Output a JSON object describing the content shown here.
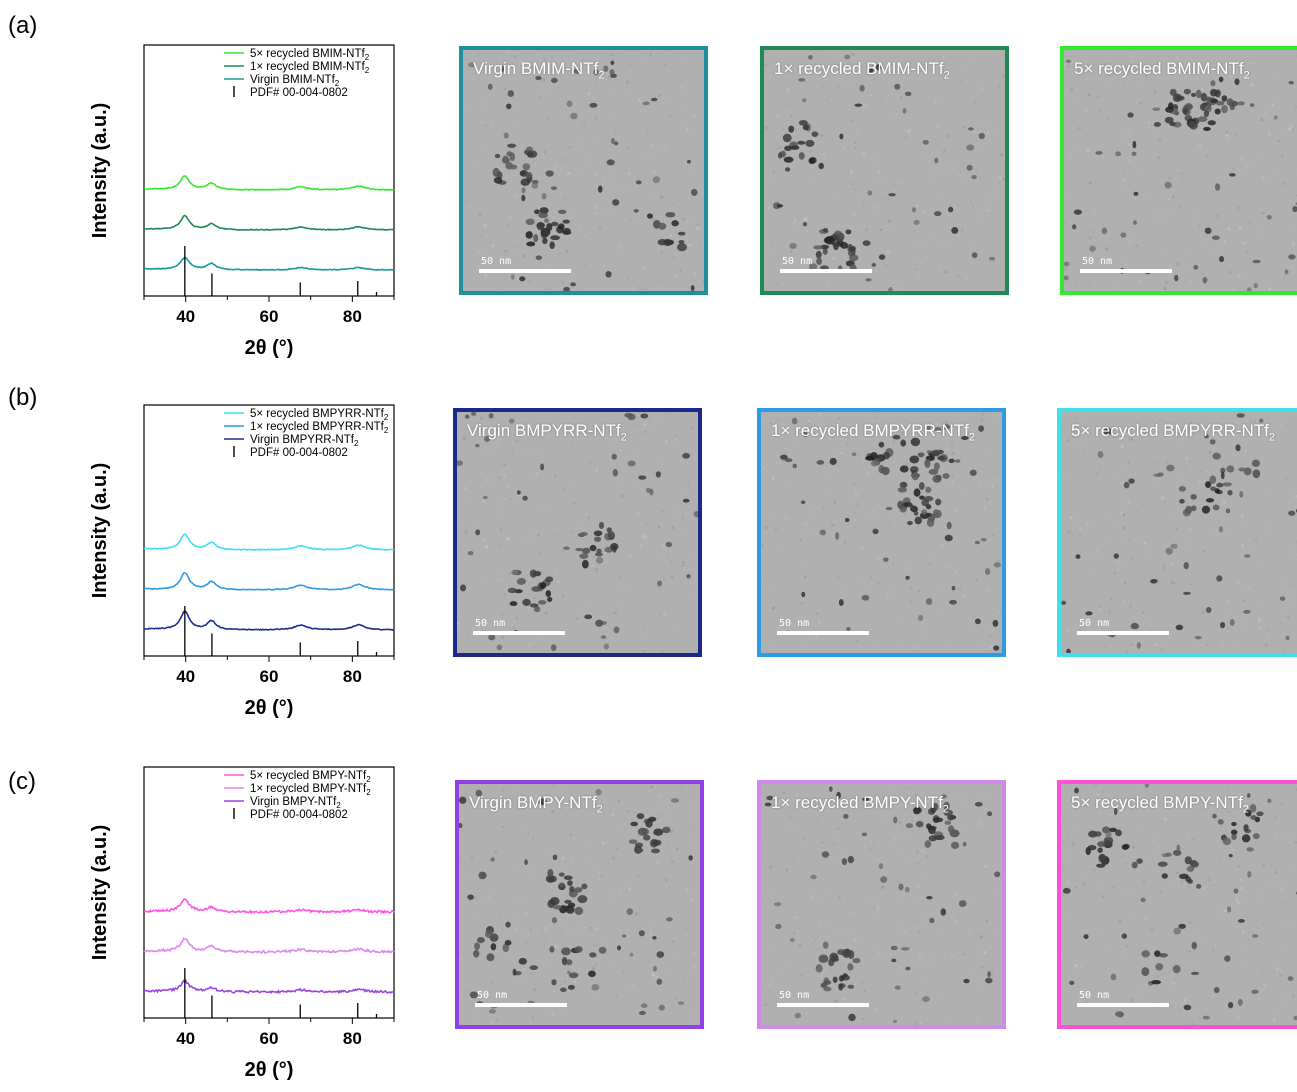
{
  "panels": [
    {
      "label": "(a)",
      "legend": [
        {
          "text": "5× recycled BMIM-NTf",
          "sub": "2",
          "color": "#33e833"
        },
        {
          "text": "1× recycled BMIM-NTf",
          "sub": "2",
          "color": "#1f8a55"
        },
        {
          "text": "Virgin BMIM-NTf",
          "sub": "2",
          "color": "#1a9a9a"
        },
        {
          "text": "PDF# 00-004-0802",
          "sub": "",
          "color": "#000000"
        }
      ],
      "tem": [
        {
          "title": "Virgin BMIM-NTf",
          "sub": "2",
          "border": "#1f8f9a",
          "scale": "50 nm"
        },
        {
          "title": "1× recycled BMIM-NTf",
          "sub": "2",
          "border": "#1e8a56",
          "scale": "50 nm"
        },
        {
          "title": "5× recycled BMIM-NTf",
          "sub": "2",
          "border": "#33e833",
          "scale": "50 nm"
        }
      ]
    },
    {
      "label": "(b)",
      "legend": [
        {
          "text": "5× recycled BMPYRR-NTf",
          "sub": "2",
          "color": "#3fe0ec"
        },
        {
          "text": "1× recycled BMPYRR-NTf",
          "sub": "2",
          "color": "#2d9be0"
        },
        {
          "text": "Virgin BMPYRR-NTf",
          "sub": "2",
          "color": "#1d2f8c"
        },
        {
          "text": "PDF# 00-004-0802",
          "sub": "",
          "color": "#000000"
        }
      ],
      "tem": [
        {
          "title": "Virgin BMPYRR-NTf",
          "sub": "2",
          "border": "#1b2a8a",
          "scale": "50 nm"
        },
        {
          "title": "1× recycled BMPYRR-NTf",
          "sub": "2",
          "border": "#2d9be6",
          "scale": "50 nm"
        },
        {
          "title": "5× recycled BMPYRR-NTf",
          "sub": "2",
          "border": "#3fe0ec",
          "scale": "50 nm"
        }
      ]
    },
    {
      "label": "(c)",
      "legend": [
        {
          "text": "5× recycled BMPY-NTf",
          "sub": "2",
          "color": "#ff55e0"
        },
        {
          "text": "1× recycled BMPY-NTf",
          "sub": "2",
          "color": "#dd88ee"
        },
        {
          "text": "Virgin BMPY-NTf",
          "sub": "2",
          "color": "#9b45e0"
        },
        {
          "text": "PDF# 00-004-0802",
          "sub": "",
          "color": "#000000"
        }
      ],
      "tem": [
        {
          "title": "Virgin BMPY-NTf",
          "sub": "2",
          "border": "#9140e8",
          "scale": "50 nm"
        },
        {
          "title": "1× recycled BMPY-NTf",
          "sub": "2",
          "border": "#d08ae8",
          "scale": "50 nm"
        },
        {
          "title": "5× recycled BMPY-NTf",
          "sub": "2",
          "border": "#ff4fd6",
          "scale": "50 nm"
        }
      ]
    }
  ],
  "chart_data": [
    {
      "type": "line",
      "ylabel": "Intensity (a.u.)",
      "xlabel": "2θ (°)",
      "xlim": [
        30,
        90
      ],
      "xticks": [
        40,
        60,
        80
      ],
      "yticks": "none",
      "series": [
        {
          "name": "5× recycled BMIM-NTf2",
          "peaks": [
            {
              "x": 39.8,
              "h": 0.34
            },
            {
              "x": 46.2,
              "h": 0.17
            },
            {
              "x": 67.6,
              "h": 0.08
            },
            {
              "x": 81.5,
              "h": 0.1
            }
          ]
        },
        {
          "name": "1× recycled BMIM-NTf2",
          "peaks": [
            {
              "x": 39.8,
              "h": 0.34
            },
            {
              "x": 46.2,
              "h": 0.15
            },
            {
              "x": 67.6,
              "h": 0.07
            },
            {
              "x": 81.5,
              "h": 0.08
            }
          ]
        },
        {
          "name": "Virgin BMIM-NTf2",
          "peaks": [
            {
              "x": 39.8,
              "h": 0.3
            },
            {
              "x": 46.2,
              "h": 0.16
            },
            {
              "x": 67.6,
              "h": 0.06
            },
            {
              "x": 81.5,
              "h": 0.06
            }
          ]
        }
      ],
      "reference": {
        "name": "PDF# 00-004-0802",
        "sticks": [
          {
            "x": 39.8,
            "h": 1.0
          },
          {
            "x": 46.3,
            "h": 0.45
          },
          {
            "x": 67.5,
            "h": 0.27
          },
          {
            "x": 81.3,
            "h": 0.3
          },
          {
            "x": 85.8,
            "h": 0.08
          }
        ]
      }
    },
    {
      "type": "line",
      "ylabel": "Intensity (a.u.)",
      "xlabel": "2θ (°)",
      "xlim": [
        30,
        90
      ],
      "xticks": [
        40,
        60,
        80
      ],
      "yticks": "none",
      "series": [
        {
          "name": "5× recycled BMPYRR-NTf2",
          "peaks": [
            {
              "x": 39.8,
              "h": 0.38
            },
            {
              "x": 46.2,
              "h": 0.18
            },
            {
              "x": 67.6,
              "h": 0.1
            },
            {
              "x": 81.5,
              "h": 0.12
            }
          ]
        },
        {
          "name": "1× recycled BMPYRR-NTf2",
          "peaks": [
            {
              "x": 39.8,
              "h": 0.42
            },
            {
              "x": 46.2,
              "h": 0.2
            },
            {
              "x": 67.6,
              "h": 0.12
            },
            {
              "x": 81.5,
              "h": 0.14
            }
          ]
        },
        {
          "name": "Virgin BMPYRR-NTf2",
          "peaks": [
            {
              "x": 39.8,
              "h": 0.45
            },
            {
              "x": 46.2,
              "h": 0.22
            },
            {
              "x": 67.6,
              "h": 0.12
            },
            {
              "x": 81.5,
              "h": 0.13
            }
          ]
        }
      ],
      "reference": {
        "name": "PDF# 00-004-0802",
        "sticks": [
          {
            "x": 39.8,
            "h": 1.0
          },
          {
            "x": 46.3,
            "h": 0.45
          },
          {
            "x": 67.5,
            "h": 0.27
          },
          {
            "x": 81.3,
            "h": 0.3
          },
          {
            "x": 85.8,
            "h": 0.08
          }
        ]
      }
    },
    {
      "type": "line",
      "ylabel": "Intensity (a.u.)",
      "xlabel": "2θ (°)",
      "xlim": [
        30,
        90
      ],
      "xticks": [
        40,
        60,
        80
      ],
      "yticks": "none",
      "series": [
        {
          "name": "5× recycled BMPY-NTf2",
          "peaks": [
            {
              "x": 39.8,
              "h": 0.3
            },
            {
              "x": 46.2,
              "h": 0.12
            },
            {
              "x": 67.6,
              "h": 0.05
            },
            {
              "x": 81.5,
              "h": 0.06
            }
          ]
        },
        {
          "name": "1× recycled BMPY-NTf2",
          "peaks": [
            {
              "x": 39.8,
              "h": 0.32
            },
            {
              "x": 46.2,
              "h": 0.13
            },
            {
              "x": 67.6,
              "h": 0.06
            },
            {
              "x": 81.5,
              "h": 0.07
            }
          ]
        },
        {
          "name": "Virgin BMPY-NTf2",
          "peaks": [
            {
              "x": 39.8,
              "h": 0.26
            },
            {
              "x": 46.2,
              "h": 0.1
            },
            {
              "x": 67.6,
              "h": 0.05
            },
            {
              "x": 81.5,
              "h": 0.06
            }
          ]
        }
      ],
      "reference": {
        "name": "PDF# 00-004-0802",
        "sticks": [
          {
            "x": 39.8,
            "h": 1.0
          },
          {
            "x": 46.3,
            "h": 0.45
          },
          {
            "x": 67.5,
            "h": 0.27
          },
          {
            "x": 81.3,
            "h": 0.3
          },
          {
            "x": 85.8,
            "h": 0.08
          }
        ]
      }
    }
  ]
}
